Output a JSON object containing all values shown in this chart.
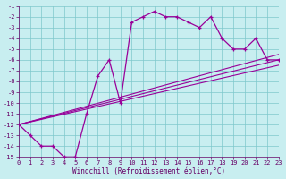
{
  "xlabel": "Windchill (Refroidissement éolien,°C)",
  "bg_color": "#c8eef0",
  "line_color": "#990099",
  "grid_color": "#7ec8cc",
  "font_color": "#660066",
  "xlim": [
    0,
    23
  ],
  "ylim": [
    -15,
    -1
  ],
  "xticks": [
    0,
    1,
    2,
    3,
    4,
    5,
    6,
    7,
    8,
    9,
    10,
    11,
    12,
    13,
    14,
    15,
    16,
    17,
    18,
    19,
    20,
    21,
    22,
    23
  ],
  "yticks": [
    -1,
    -2,
    -3,
    -4,
    -5,
    -6,
    -7,
    -8,
    -9,
    -10,
    -11,
    -12,
    -13,
    -14,
    -15
  ],
  "curve1_x": [
    0,
    1,
    2,
    3,
    4,
    5,
    6,
    7,
    8,
    9,
    10,
    11,
    12,
    13,
    14,
    15,
    16,
    17,
    18,
    19,
    20,
    21,
    22,
    23
  ],
  "curve1_y": [
    -12,
    -13,
    -14,
    -14,
    -15,
    -15,
    -11,
    -7.5,
    -6,
    -10,
    -2.5,
    -2,
    -1.5,
    -2,
    -2,
    -2.5,
    -3,
    -2,
    -4,
    -5,
    -5,
    -4,
    -6,
    -6
  ],
  "line1_x": [
    0,
    23
  ],
  "line1_y": [
    -12,
    -5.5
  ],
  "line2_x": [
    0,
    23
  ],
  "line2_y": [
    -12,
    -6.0
  ],
  "line3_x": [
    0,
    23
  ],
  "line3_y": [
    -12,
    -6.5
  ],
  "label_fontsize": 5.5,
  "tick_fontsize": 5.0
}
